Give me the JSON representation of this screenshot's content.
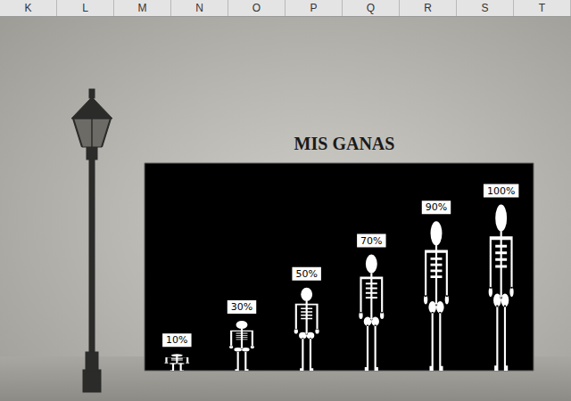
{
  "spreadsheet": {
    "columns": [
      "K",
      "L",
      "M",
      "N",
      "O",
      "P",
      "Q",
      "R",
      "S",
      "T"
    ]
  },
  "chart_data": {
    "type": "bar",
    "title": "MIS GANAS",
    "marker": "skeleton",
    "categories": [
      null,
      null,
      null,
      null,
      null,
      null
    ],
    "values": [
      10,
      30,
      50,
      70,
      90,
      100
    ],
    "value_labels": [
      "10%",
      "30%",
      "50%",
      "70%",
      "90%",
      "100%"
    ],
    "data_labels": true,
    "color": "#ffffff",
    "ylim": [
      0,
      125
    ],
    "grid": false,
    "tick_labels": false
  }
}
